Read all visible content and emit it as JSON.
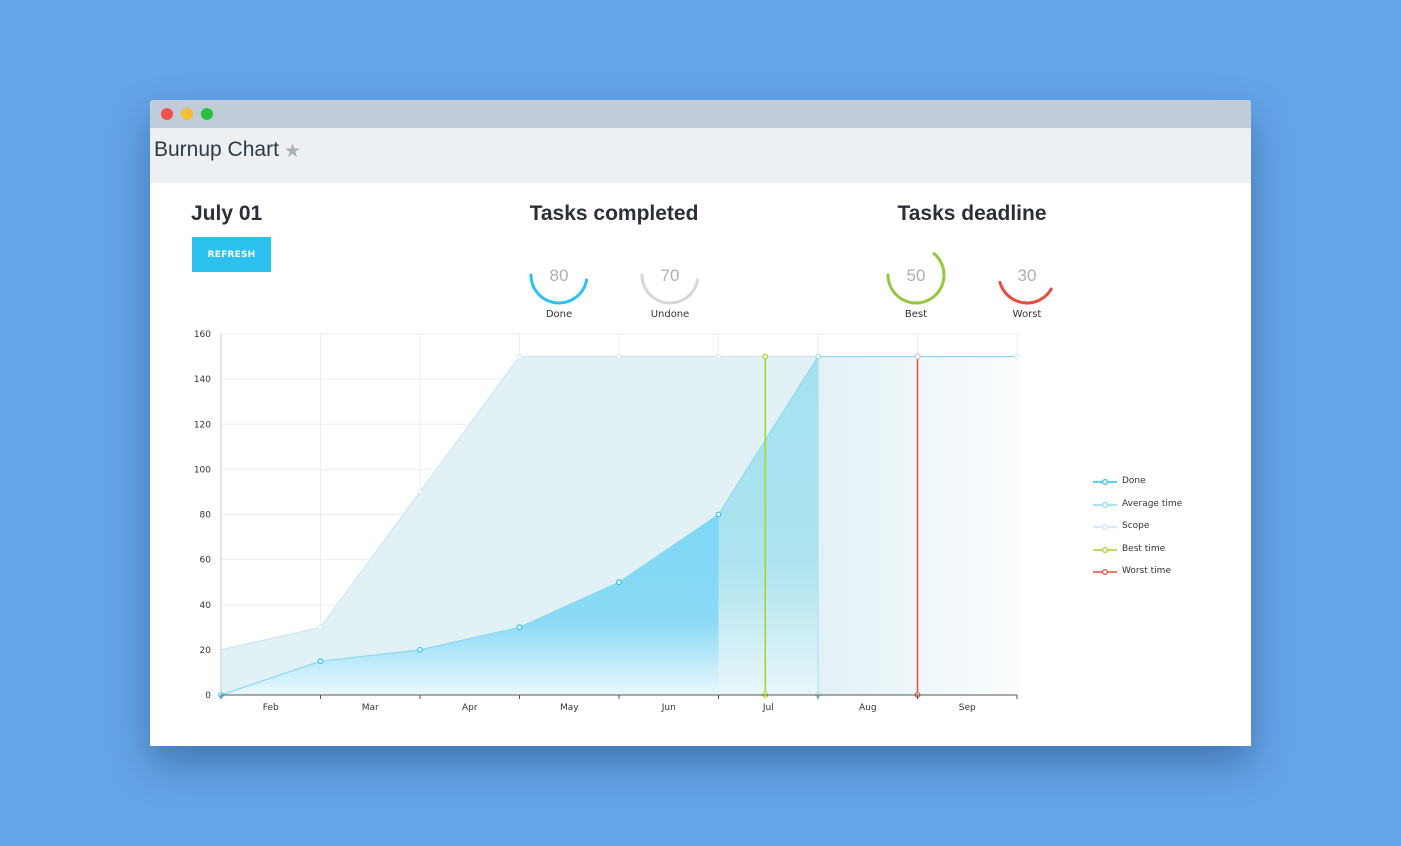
{
  "window": {
    "title": "Burnup Chart",
    "star_icon": "star-icon"
  },
  "toolbar": {
    "date": "July 01",
    "refresh_label": "REFRESH"
  },
  "tasks_completed": {
    "title": "Tasks completed",
    "gauges": [
      {
        "label": "Done",
        "value": "80",
        "color": "#2cc1ef"
      },
      {
        "label": "Undone",
        "value": "70",
        "color": "#d4d8dc"
      }
    ]
  },
  "tasks_deadline": {
    "title": "Tasks deadline",
    "gauges": [
      {
        "label": "Best",
        "value": "50",
        "color": "#94c93b"
      },
      {
        "label": "Worst",
        "value": "30",
        "color": "#e84c3d"
      }
    ]
  },
  "chart_data": {
    "type": "area",
    "x": [
      "Feb",
      "Mar",
      "Apr",
      "May",
      "Jun",
      "Jul",
      "Aug",
      "Sep"
    ],
    "ylim": [
      0,
      160
    ],
    "yticks": [
      0,
      20,
      40,
      60,
      80,
      100,
      120,
      140,
      160
    ],
    "grid": true,
    "legend_position": "right",
    "series": [
      {
        "name": "Done",
        "color": "#2cc1ef",
        "points": [
          [
            0,
            0
          ],
          [
            1,
            15
          ],
          [
            2,
            20
          ],
          [
            3,
            30
          ],
          [
            4,
            50
          ],
          [
            5,
            80
          ]
        ]
      },
      {
        "name": "Average time",
        "color": "#8fd9ef",
        "points": [
          [
            5,
            80
          ],
          [
            6,
            150
          ],
          [
            8,
            150
          ]
        ]
      },
      {
        "name": "Scope",
        "color": "#cce7f2",
        "points": [
          [
            0,
            20
          ],
          [
            1,
            30
          ],
          [
            2,
            90
          ],
          [
            3,
            150
          ],
          [
            4,
            150
          ],
          [
            5,
            150
          ],
          [
            6,
            150
          ],
          [
            7,
            150
          ],
          [
            8,
            150
          ]
        ]
      },
      {
        "name": "Best time",
        "color": "#a6d61d",
        "points": [
          [
            5.47,
            0
          ],
          [
            5.47,
            150
          ]
        ]
      },
      {
        "name": "Worst time",
        "color": "#e84c3d",
        "points": [
          [
            7,
            0
          ],
          [
            7,
            150
          ]
        ]
      }
    ]
  }
}
